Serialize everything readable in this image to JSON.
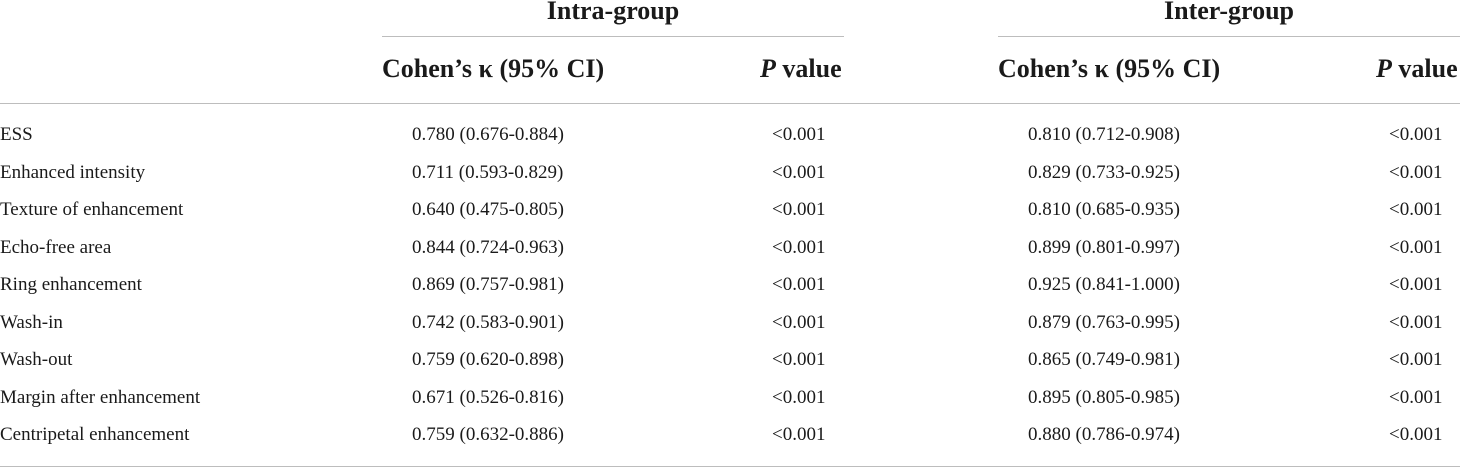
{
  "header": {
    "intra_group": "Intra-group",
    "inter_group": "Inter-group",
    "kappa_label": "Cohen’s κ (95% CI)",
    "p_letter": "P",
    "p_suffix": " value"
  },
  "rows": [
    {
      "label": "ESS",
      "intra_kappa": "0.780 (0.676-0.884)",
      "intra_p": "<0.001",
      "inter_kappa": "0.810 (0.712-0.908)",
      "inter_p": "<0.001"
    },
    {
      "label": "Enhanced intensity",
      "intra_kappa": "0.711 (0.593-0.829)",
      "intra_p": "<0.001",
      "inter_kappa": "0.829 (0.733-0.925)",
      "inter_p": "<0.001"
    },
    {
      "label": "Texture of enhancement",
      "intra_kappa": "0.640 (0.475-0.805)",
      "intra_p": "<0.001",
      "inter_kappa": "0.810 (0.685-0.935)",
      "inter_p": "<0.001"
    },
    {
      "label": "Echo-free area",
      "intra_kappa": "0.844 (0.724-0.963)",
      "intra_p": "<0.001",
      "inter_kappa": "0.899 (0.801-0.997)",
      "inter_p": "<0.001"
    },
    {
      "label": "Ring enhancement",
      "intra_kappa": "0.869 (0.757-0.981)",
      "intra_p": "<0.001",
      "inter_kappa": "0.925 (0.841-1.000)",
      "inter_p": "<0.001"
    },
    {
      "label": "Wash-in",
      "intra_kappa": "0.742 (0.583-0.901)",
      "intra_p": "<0.001",
      "inter_kappa": "0.879 (0.763-0.995)",
      "inter_p": "<0.001"
    },
    {
      "label": "Wash-out",
      "intra_kappa": "0.759 (0.620-0.898)",
      "intra_p": "<0.001",
      "inter_kappa": "0.865 (0.749-0.981)",
      "inter_p": "<0.001"
    },
    {
      "label": "Margin after enhancement",
      "intra_kappa": "0.671 (0.526-0.816)",
      "intra_p": "<0.001",
      "inter_kappa": "0.895 (0.805-0.985)",
      "inter_p": "<0.001"
    },
    {
      "label": "Centripetal enhancement",
      "intra_kappa": "0.759 (0.632-0.886)",
      "intra_p": "<0.001",
      "inter_kappa": "0.880 (0.786-0.974)",
      "inter_p": "<0.001"
    }
  ]
}
